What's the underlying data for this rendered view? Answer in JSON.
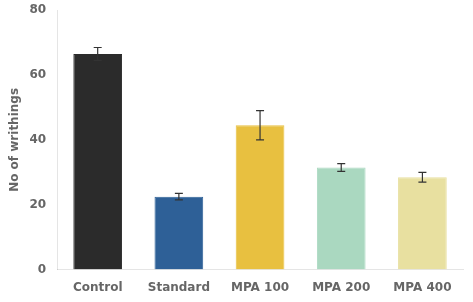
{
  "chart_data": {
    "type": "bar",
    "categories": [
      "Control",
      "Standard",
      "MPA 100",
      "MPA 200",
      "MPA 400"
    ],
    "values": [
      66.5,
      22.5,
      44.5,
      31.5,
      28.5
    ],
    "errors": [
      2.0,
      1.0,
      4.5,
      1.2,
      1.5
    ],
    "colors": [
      "#2b2b2b",
      "#2e6097",
      "#e8c040",
      "#aad8c0",
      "#e8e0a0"
    ],
    "ylabel": "No of writhings",
    "ylim": [
      0,
      80
    ],
    "yticks": [
      0,
      20,
      40,
      60,
      80
    ],
    "grid": false
  }
}
